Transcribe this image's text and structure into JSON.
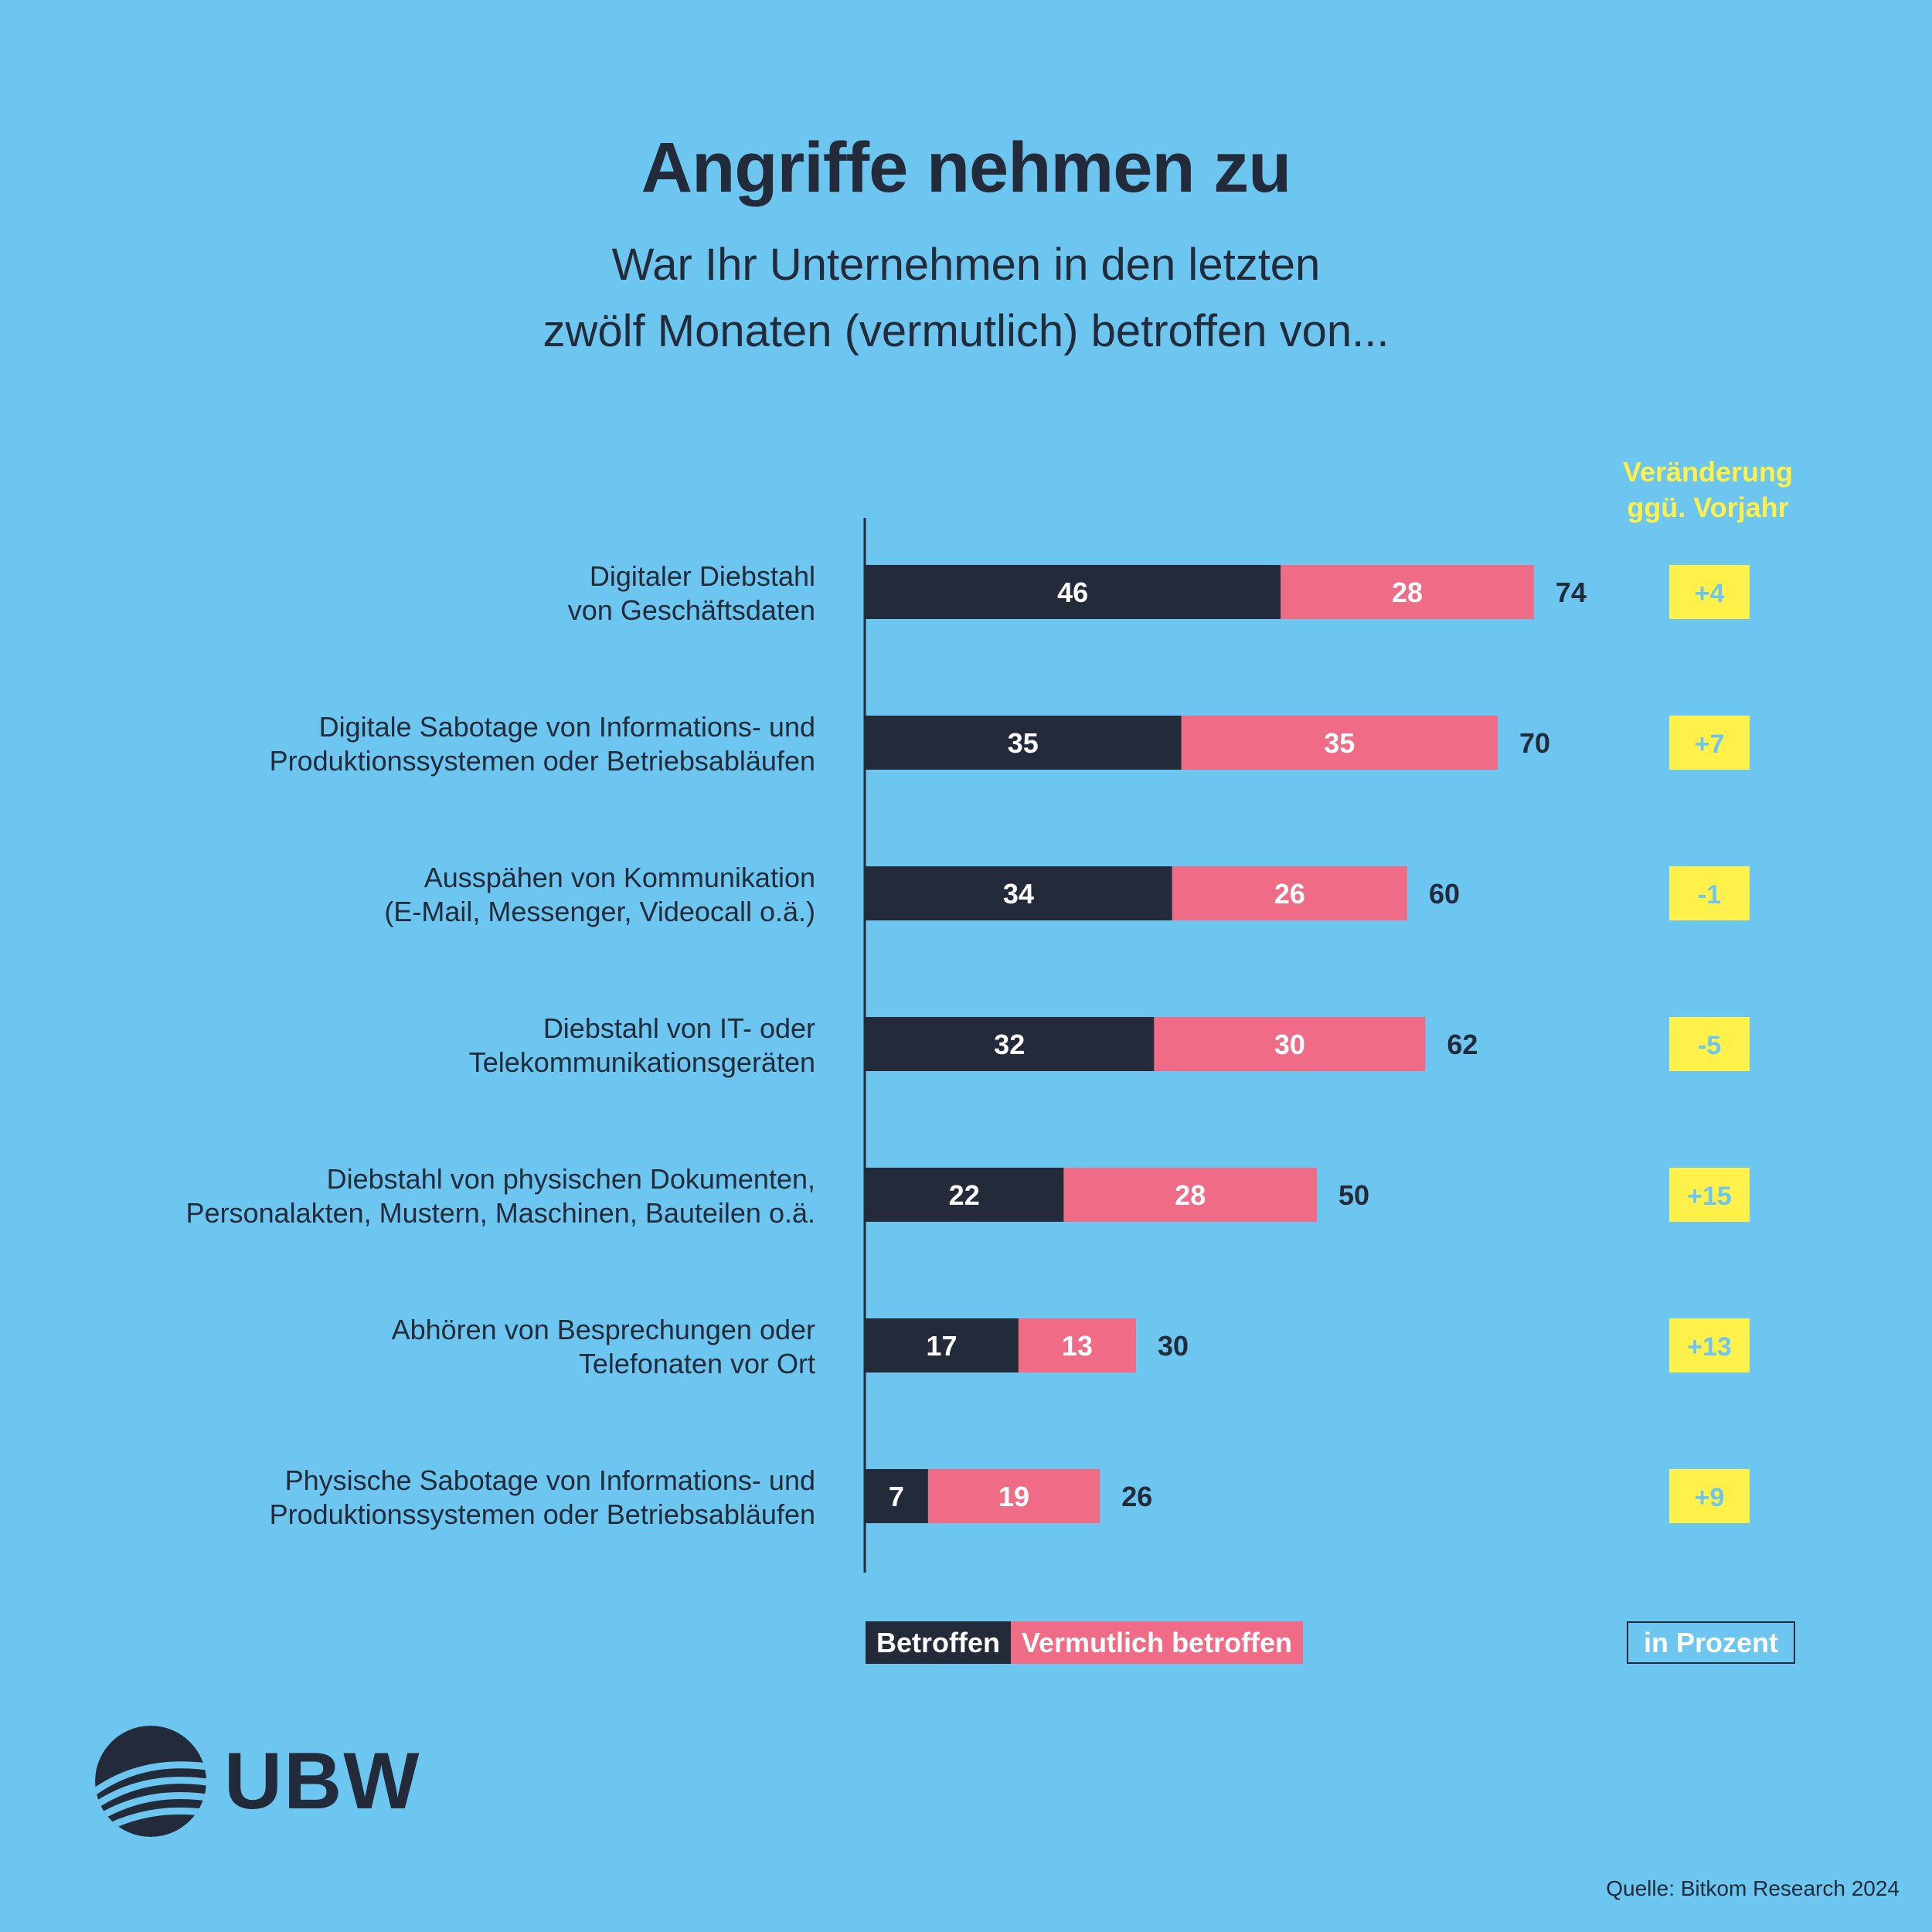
{
  "chart_data": {
    "type": "bar",
    "stacked": true,
    "orientation": "horizontal",
    "title": "Angriffe nehmen zu",
    "subtitle": [
      "War Ihr Unternehmen in den letzten",
      "zwölf Monaten (vermutlich) betroffen von..."
    ],
    "categories": [
      [
        "Digitaler Diebstahl",
        "von Geschäftsdaten"
      ],
      [
        "Digitale Sabotage von Informations- und",
        "Produktionssystemen oder Betriebsabläufen"
      ],
      [
        "Ausspähen von Kommunikation",
        "(E-Mail, Messenger, Videocall o.ä.)"
      ],
      [
        "Diebstahl von IT- oder",
        "Telekommunikationsgeräten"
      ],
      [
        "Diebstahl von physischen Dokumenten,",
        "Personalakten, Mustern, Maschinen, Bauteilen o.ä."
      ],
      [
        "Abhören von Besprechungen oder",
        "Telefonaten vor Ort"
      ],
      [
        "Physische Sabotage von Informations- und",
        "Produktionssystemen oder Betriebsabläufen"
      ]
    ],
    "series": [
      {
        "name": "Betroffen",
        "color": "#232b3a",
        "values": [
          46,
          35,
          34,
          32,
          22,
          17,
          7
        ]
      },
      {
        "name": "Vermutlich betroffen",
        "color": "#ef6b86",
        "values": [
          28,
          35,
          26,
          30,
          28,
          13,
          19
        ]
      }
    ],
    "totals": [
      74,
      70,
      60,
      62,
      50,
      30,
      26
    ],
    "change_header": [
      "Veränderung",
      "ggü. Vorjahr"
    ],
    "changes": [
      "+4",
      "+7",
      "-1",
      "-5",
      "+15",
      "+13",
      "+9"
    ],
    "unit": "in Prozent",
    "xlim": [
      0,
      100
    ]
  },
  "legend": {
    "betroffen": "Betroffen",
    "vermutlich": "Vermutlich betroffen"
  },
  "logo": {
    "text": "UBW"
  },
  "source": "Quelle: Bitkom Research 2024",
  "colors": {
    "background": "#6cc6ef",
    "dark": "#232b3a",
    "pink": "#ef6b86",
    "yellow": "#fff04a"
  }
}
